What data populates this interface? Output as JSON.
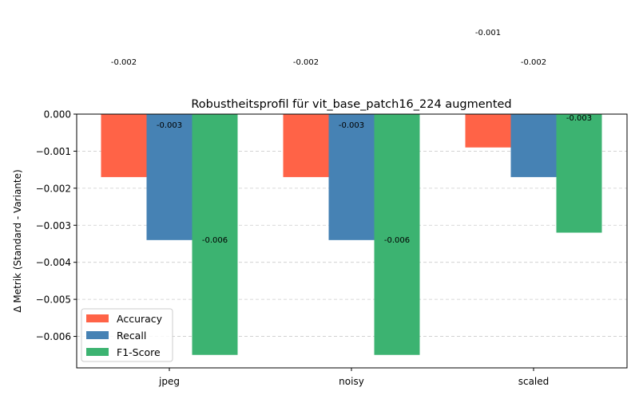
{
  "chart_data": {
    "type": "bar",
    "title": "Robustheitsprofil für vit_base_patch16_224 augmented",
    "xlabel": "",
    "ylabel": "Δ Metrik (Standard - Variante)",
    "categories": [
      "jpeg",
      "noisy",
      "scaled"
    ],
    "series": [
      {
        "name": "Accuracy",
        "color": "#FF6347",
        "values": [
          -0.0017,
          -0.0017,
          -0.0009
        ]
      },
      {
        "name": "Recall",
        "color": "#4682B4",
        "values": [
          -0.0034,
          -0.0034,
          -0.0017
        ]
      },
      {
        "name": "F1-Score",
        "color": "#3CB371",
        "values": [
          -0.0065,
          -0.0065,
          -0.0032
        ]
      }
    ],
    "data_labels": [
      [
        "-0.002",
        "-0.002",
        "-0.001"
      ],
      [
        "-0.003",
        "-0.003",
        "-0.002"
      ],
      [
        "-0.006",
        "-0.006",
        "-0.003"
      ]
    ],
    "ylim": [
      -0.00685,
      0.0
    ],
    "yticks": [
      0.0,
      -0.001,
      -0.002,
      -0.003,
      -0.004,
      -0.005,
      -0.006
    ],
    "ytick_labels": [
      "0.000",
      "−0.001",
      "−0.002",
      "−0.003",
      "−0.004",
      "−0.005",
      "−0.006"
    ],
    "grid": "y-dashed",
    "legend_position": "lower-left"
  }
}
